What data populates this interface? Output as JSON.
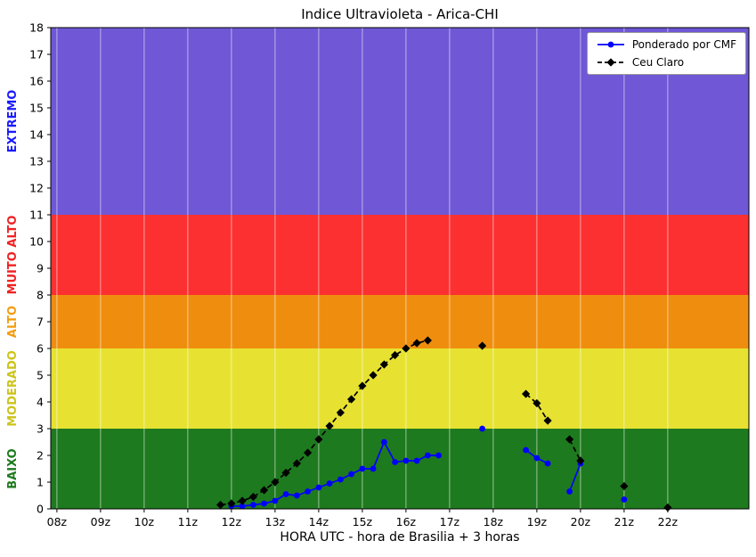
{
  "chart_data": {
    "type": "line",
    "title": "Indice Ultravioleta - Arica-CHI",
    "xlabel": "HORA UTC - hora de Brasilia + 3 horas",
    "ylabel": "",
    "xlim": [
      7.86,
      23.86
    ],
    "ylim": [
      0,
      18
    ],
    "x_ticks": [
      {
        "value": 8,
        "label": "08z"
      },
      {
        "value": 9,
        "label": "09z"
      },
      {
        "value": 10,
        "label": "10z"
      },
      {
        "value": 11,
        "label": "11z"
      },
      {
        "value": 12,
        "label": "12z"
      },
      {
        "value": 13,
        "label": "13z"
      },
      {
        "value": 14,
        "label": "14z"
      },
      {
        "value": 15,
        "label": "15z"
      },
      {
        "value": 16,
        "label": "16z"
      },
      {
        "value": 17,
        "label": "17z"
      },
      {
        "value": 18,
        "label": "18z"
      },
      {
        "value": 19,
        "label": "19z"
      },
      {
        "value": 20,
        "label": "20z"
      },
      {
        "value": 21,
        "label": "21z"
      },
      {
        "value": 22,
        "label": "22z"
      }
    ],
    "y_ticks": [
      0,
      1,
      2,
      3,
      4,
      5,
      6,
      7,
      8,
      9,
      10,
      11,
      12,
      13,
      14,
      15,
      16,
      17,
      18
    ],
    "grid": {
      "vertical": true,
      "color": "rgba(255,255,255,0.55)"
    },
    "bands": [
      {
        "label": "BAIXO",
        "from": 0,
        "to": 3,
        "color": "#1e7a1e",
        "label_color": "#1e7a1e"
      },
      {
        "label": "MODERADO",
        "from": 3,
        "to": 6,
        "color": "#e7e232",
        "label_color": "#cdc41a"
      },
      {
        "label": "ALTO",
        "from": 6,
        "to": 8,
        "color": "#ef8e0e",
        "label_color": "#f59c0e"
      },
      {
        "label": "MUITO ALTO",
        "from": 8,
        "to": 11,
        "color": "#fc3030",
        "label_color": "#f02222"
      },
      {
        "label": "EXTREMO",
        "from": 11,
        "to": 18,
        "color": "#6f57d6",
        "label_color": "#1a1aff"
      }
    ],
    "legend": {
      "loc": "upper right"
    },
    "series": [
      {
        "name": "Ponderado por CMF",
        "color": "#0000ff",
        "marker": "circle",
        "linestyle": "solid",
        "points": [
          [
            12.0,
            0.1
          ],
          [
            12.25,
            0.1
          ],
          [
            12.5,
            0.15
          ],
          [
            12.75,
            0.2
          ],
          [
            13.0,
            0.3
          ],
          [
            13.25,
            0.55
          ],
          [
            13.5,
            0.5
          ],
          [
            13.75,
            0.65
          ],
          [
            14.0,
            0.8
          ],
          [
            14.25,
            0.95
          ],
          [
            14.5,
            1.1
          ],
          [
            14.75,
            1.3
          ],
          [
            15.0,
            1.5
          ],
          [
            15.25,
            1.5
          ],
          [
            15.5,
            2.5
          ],
          [
            15.75,
            1.75
          ],
          [
            16.0,
            1.8
          ],
          [
            16.25,
            1.8
          ],
          [
            16.5,
            2.0
          ],
          [
            16.75,
            2.0
          ],
          null,
          [
            17.75,
            3.0
          ],
          null,
          [
            18.75,
            2.2
          ],
          [
            19.0,
            1.9
          ],
          [
            19.25,
            1.7
          ],
          null,
          [
            19.75,
            0.65
          ],
          [
            20.0,
            1.7
          ],
          null,
          [
            21.0,
            0.35
          ]
        ]
      },
      {
        "name": "Ceu Claro",
        "color": "#000000",
        "marker": "diamond",
        "linestyle": "dashed",
        "points": [
          [
            11.75,
            0.15
          ],
          [
            12.0,
            0.2
          ],
          [
            12.25,
            0.3
          ],
          [
            12.5,
            0.45
          ],
          [
            12.75,
            0.7
          ],
          [
            13.0,
            1.0
          ],
          [
            13.25,
            1.35
          ],
          [
            13.5,
            1.7
          ],
          [
            13.75,
            2.1
          ],
          [
            14.0,
            2.6
          ],
          [
            14.25,
            3.1
          ],
          [
            14.5,
            3.6
          ],
          [
            14.75,
            4.1
          ],
          [
            15.0,
            4.6
          ],
          [
            15.25,
            5.0
          ],
          [
            15.5,
            5.4
          ],
          [
            15.75,
            5.75
          ],
          [
            16.0,
            6.0
          ],
          [
            16.25,
            6.2
          ],
          [
            16.5,
            6.3
          ],
          null,
          [
            17.75,
            6.1
          ],
          null,
          [
            18.75,
            4.3
          ],
          [
            19.0,
            3.95
          ],
          [
            19.25,
            3.3
          ],
          null,
          [
            19.75,
            2.6
          ],
          [
            20.0,
            1.8
          ],
          null,
          [
            21.0,
            0.85
          ],
          null,
          [
            22.0,
            0.05
          ]
        ]
      }
    ]
  }
}
